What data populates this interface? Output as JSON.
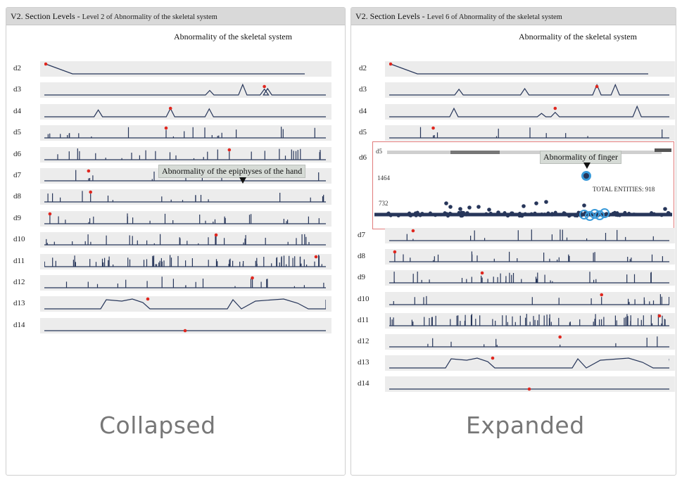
{
  "left": {
    "header_main": "V2. Section Levels - ",
    "header_sub": "Level 2 of Abnormality of the skeletal system",
    "chart_title": "Abnormality of the skeletal system",
    "rows": [
      "d2",
      "d3",
      "d4",
      "d5",
      "d6",
      "d7",
      "d8",
      "d9",
      "d10",
      "d11",
      "d12",
      "d13",
      "d14"
    ],
    "tooltip": "Abnormality of the epiphyses of the hand",
    "caption": "Collapsed"
  },
  "right": {
    "header_main": "V2. Section Levels - ",
    "header_sub": "Level 6 of Abnormality of the skeletal system",
    "chart_title": "Abnormality of the skeletal system",
    "rows_top": [
      "d2",
      "d3",
      "d4",
      "d5"
    ],
    "expanded_row": "d6",
    "expanded_inner_label": "d5",
    "y_ticks": [
      "1464",
      "732"
    ],
    "tooltip": "Abnormality of finger",
    "total_entities": "TOTAL ENTITIES: 918",
    "rows_bottom": [
      "d7",
      "d8",
      "d9",
      "d10",
      "d11",
      "d12",
      "d13",
      "d14"
    ],
    "caption": "Expanded"
  },
  "colors": {
    "line": "#27365a",
    "marker": "#e0271f",
    "band": "#ececec",
    "highlight": "#3a9ad9",
    "expanded_border": "#e07a7a"
  }
}
